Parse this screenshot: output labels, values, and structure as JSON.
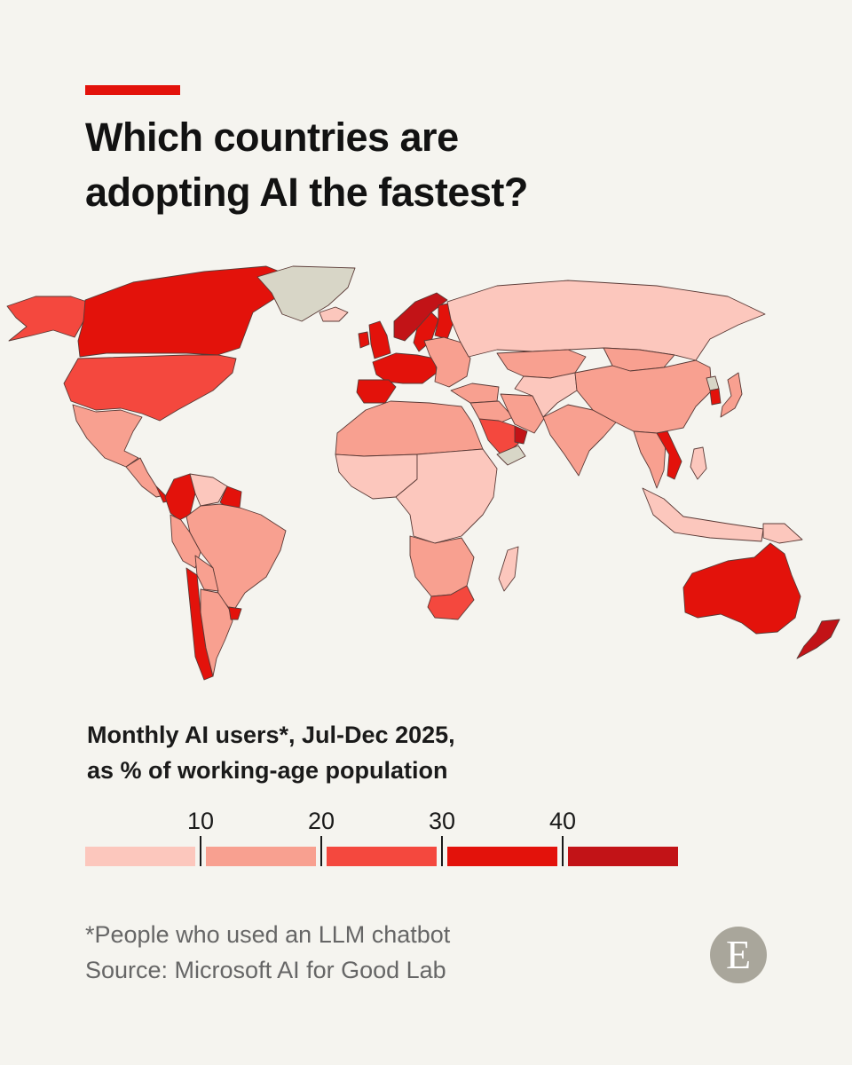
{
  "header": {
    "title_line1": "Which countries are",
    "title_line2": "adopting AI the fastest?"
  },
  "legend": {
    "title_line1": "Monthly AI users*,  Jul-Dec 2025,",
    "title_line2": "as % of working-age population",
    "ticks": [
      "10",
      "20",
      "30",
      "40"
    ],
    "colors": [
      "#fcc7bd",
      "#f8a090",
      "#f4483e",
      "#e3120b",
      "#c21317"
    ]
  },
  "footer": {
    "footnote": "*People who used an LLM chatbot",
    "source": "Source: Microsoft AI for Good Lab",
    "logo_letter": "E"
  },
  "colors": {
    "accent": "#e3120b",
    "background": "#f5f4ef",
    "no_data": "#d8d6c7",
    "border": "#5a3a36"
  },
  "chart_data": {
    "type": "choropleth",
    "metric": "Monthly AI users as % of working-age population",
    "bins": [
      {
        "range": [
          0,
          10
        ],
        "color": "#fcc7bd"
      },
      {
        "range": [
          10,
          20
        ],
        "color": "#f8a090"
      },
      {
        "range": [
          20,
          30
        ],
        "color": "#f4483e"
      },
      {
        "range": [
          30,
          40
        ],
        "color": "#e3120b"
      },
      {
        "range": [
          40,
          50
        ],
        "color": "#c21317"
      }
    ],
    "regions": [
      {
        "name": "Canada",
        "bin": 4
      },
      {
        "name": "United States",
        "bin": 3
      },
      {
        "name": "Alaska",
        "bin": 3
      },
      {
        "name": "Greenland",
        "bin": null
      },
      {
        "name": "Mexico",
        "bin": 2
      },
      {
        "name": "Central America",
        "bin": 2
      },
      {
        "name": "Costa Rica",
        "bin": 4
      },
      {
        "name": "Colombia",
        "bin": 4
      },
      {
        "name": "Venezuela",
        "bin": 1
      },
      {
        "name": "Guyana",
        "bin": 4
      },
      {
        "name": "Brazil",
        "bin": 2
      },
      {
        "name": "Peru",
        "bin": 2
      },
      {
        "name": "Bolivia",
        "bin": 2
      },
      {
        "name": "Chile",
        "bin": 4
      },
      {
        "name": "Argentina",
        "bin": 2
      },
      {
        "name": "Uruguay",
        "bin": 4
      },
      {
        "name": "United Kingdom",
        "bin": 4
      },
      {
        "name": "Ireland",
        "bin": 4
      },
      {
        "name": "Iceland",
        "bin": 1
      },
      {
        "name": "Norway",
        "bin": 5
      },
      {
        "name": "Sweden",
        "bin": 4
      },
      {
        "name": "Finland",
        "bin": 4
      },
      {
        "name": "Western Europe",
        "bin": 4
      },
      {
        "name": "Spain and Portugal",
        "bin": 4
      },
      {
        "name": "Eastern Europe",
        "bin": 2
      },
      {
        "name": "Russia",
        "bin": 1
      },
      {
        "name": "Turkey",
        "bin": 2
      },
      {
        "name": "Middle East",
        "bin": 2
      },
      {
        "name": "Saudi Arabia",
        "bin": 3
      },
      {
        "name": "United Arab Emirates",
        "bin": 5
      },
      {
        "name": "Yemen",
        "bin": null
      },
      {
        "name": "North Africa",
        "bin": 2
      },
      {
        "name": "West Africa",
        "bin": 1
      },
      {
        "name": "Central and East Africa",
        "bin": 1
      },
      {
        "name": "Southern Africa",
        "bin": 2
      },
      {
        "name": "South Africa",
        "bin": 3
      },
      {
        "name": "Madagascar",
        "bin": 1
      },
      {
        "name": "Kazakhstan",
        "bin": 2
      },
      {
        "name": "Central Asia",
        "bin": 1
      },
      {
        "name": "Iran",
        "bin": 2
      },
      {
        "name": "India",
        "bin": 2
      },
      {
        "name": "Mongolia",
        "bin": 2
      },
      {
        "name": "China",
        "bin": 2
      },
      {
        "name": "North Korea",
        "bin": null
      },
      {
        "name": "South Korea",
        "bin": 4
      },
      {
        "name": "Japan",
        "bin": 2
      },
      {
        "name": "Southeast Asia",
        "bin": 2
      },
      {
        "name": "Vietnam",
        "bin": 4
      },
      {
        "name": "Indonesia",
        "bin": 1
      },
      {
        "name": "Philippines",
        "bin": 1
      },
      {
        "name": "Papua New Guinea",
        "bin": 1
      },
      {
        "name": "Australia",
        "bin": 4
      },
      {
        "name": "New Zealand",
        "bin": 5
      }
    ]
  }
}
